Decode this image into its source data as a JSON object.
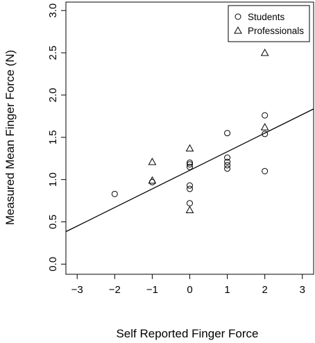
{
  "chart_data": {
    "type": "scatter",
    "xlabel": "Self Reported Finger Force",
    "ylabel": "Measured Mean Finger Force (N)",
    "xlim": [
      -3.3,
      3.3
    ],
    "ylim": [
      -0.12,
      3.1
    ],
    "x_ticks": [
      -3,
      -2,
      -1,
      0,
      1,
      2,
      3
    ],
    "x_tick_labels": [
      "−3",
      "−2",
      "−1",
      "0",
      "1",
      "2",
      "3"
    ],
    "y_ticks": [
      0.0,
      0.5,
      1.0,
      1.5,
      2.0,
      2.5,
      3.0
    ],
    "y_tick_labels": [
      "0.0",
      "0.5",
      "1.0",
      "1.5",
      "2.0",
      "2.5",
      "3.0"
    ],
    "grid": false,
    "legend_position": "top-right",
    "series": [
      {
        "name": "Students",
        "marker": "circle",
        "points": [
          {
            "x": -2,
            "y": 0.83
          },
          {
            "x": -1,
            "y": 0.97
          },
          {
            "x": 0,
            "y": 1.2
          },
          {
            "x": 0,
            "y": 1.18
          },
          {
            "x": 0,
            "y": 1.15
          },
          {
            "x": 0,
            "y": 0.93
          },
          {
            "x": 0,
            "y": 0.89
          },
          {
            "x": 0,
            "y": 0.72
          },
          {
            "x": 1,
            "y": 1.55
          },
          {
            "x": 1,
            "y": 1.26
          },
          {
            "x": 1,
            "y": 1.21
          },
          {
            "x": 1,
            "y": 1.17
          },
          {
            "x": 1,
            "y": 1.13
          },
          {
            "x": 2,
            "y": 1.76
          },
          {
            "x": 2,
            "y": 1.54
          },
          {
            "x": 2,
            "y": 1.1
          }
        ]
      },
      {
        "name": "Professionals",
        "marker": "triangle",
        "points": [
          {
            "x": -1,
            "y": 1.21
          },
          {
            "x": -1,
            "y": 0.99
          },
          {
            "x": 0,
            "y": 1.37
          },
          {
            "x": 0,
            "y": 0.64
          },
          {
            "x": 2,
            "y": 2.5
          },
          {
            "x": 2,
            "y": 1.62
          }
        ]
      }
    ],
    "regression_line": {
      "intercept": 1.11,
      "slope": 0.22
    }
  }
}
